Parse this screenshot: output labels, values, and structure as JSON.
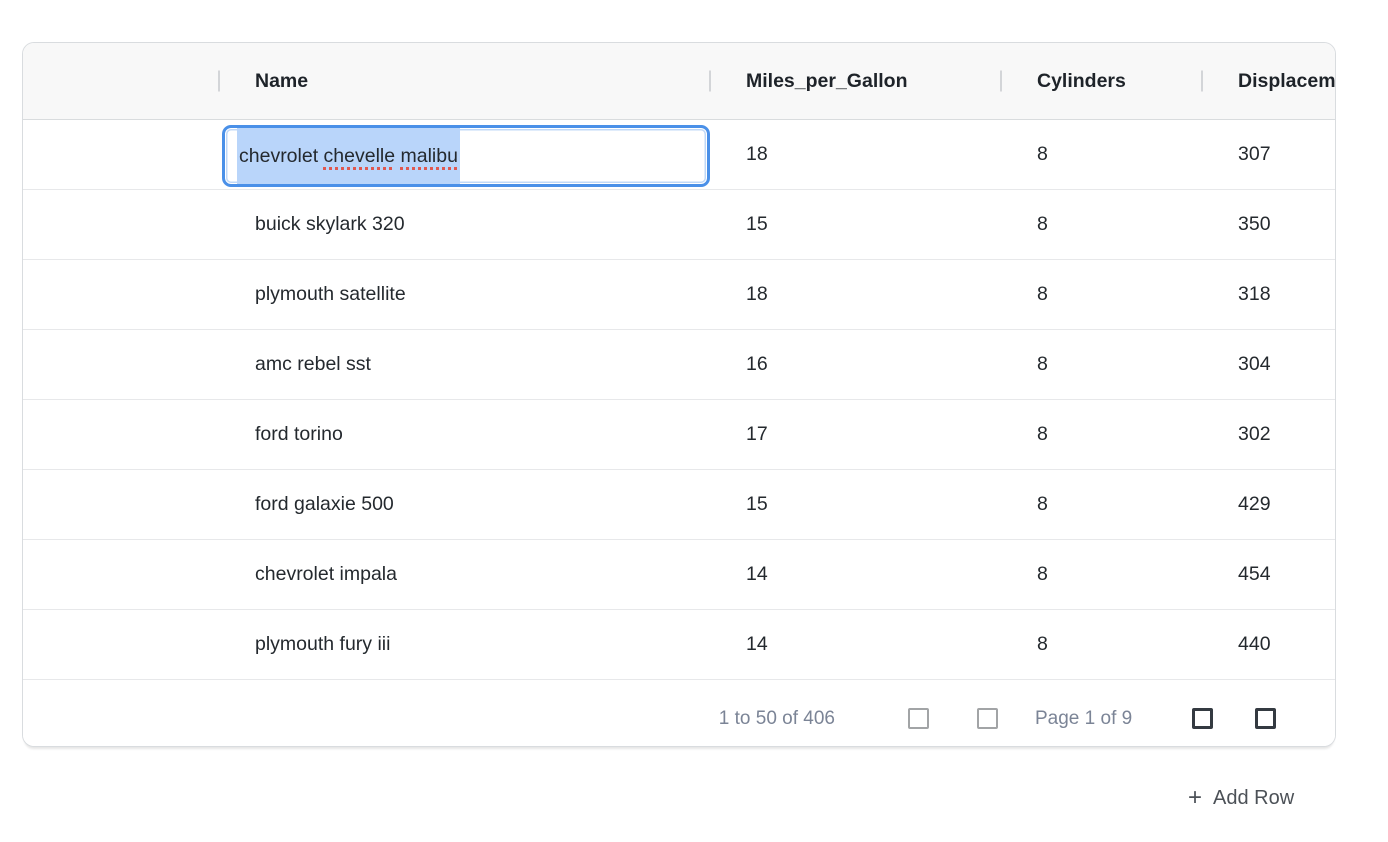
{
  "table": {
    "columns": [
      {
        "key": "drag",
        "label": ""
      },
      {
        "key": "name",
        "label": "Name"
      },
      {
        "key": "mpg",
        "label": "Miles_per_Gallon"
      },
      {
        "key": "cylinders",
        "label": "Cylinders"
      },
      {
        "key": "displacement",
        "label": "Displacement",
        "truncated_display": "Displacer"
      }
    ],
    "rows": [
      {
        "name": "",
        "mpg": 18,
        "cylinders": 8,
        "displacement": 307,
        "editing": true
      },
      {
        "name": "buick skylark 320",
        "mpg": 15,
        "cylinders": 8,
        "displacement": 350
      },
      {
        "name": "plymouth satellite",
        "mpg": 18,
        "cylinders": 8,
        "displacement": 318
      },
      {
        "name": "amc rebel sst",
        "mpg": 16,
        "cylinders": 8,
        "displacement": 304
      },
      {
        "name": "ford torino",
        "mpg": 17,
        "cylinders": 8,
        "displacement": 302
      },
      {
        "name": "ford galaxie 500",
        "mpg": 15,
        "cylinders": 8,
        "displacement": 429
      },
      {
        "name": "chevrolet impala",
        "mpg": 14,
        "cylinders": 8,
        "displacement": 454
      },
      {
        "name": "plymouth fury iii",
        "mpg": 14,
        "cylinders": 8,
        "displacement": 440
      }
    ],
    "editor": {
      "value": "chevrolet chevelle malibu",
      "text_selected": true,
      "segments": [
        {
          "text": "chevrolet ",
          "misspelled": false
        },
        {
          "text": "chevelle",
          "misspelled": true
        },
        {
          "text": " ",
          "misspelled": false
        },
        {
          "text": "malibu",
          "misspelled": true
        }
      ]
    }
  },
  "pagination": {
    "summary": "1 to 50 of 406",
    "page_status": "Page 1 of 9",
    "buttons": [
      {
        "name": "first-page",
        "enabled": false
      },
      {
        "name": "previous-page",
        "enabled": false
      },
      {
        "name": "next-page",
        "enabled": true
      },
      {
        "name": "last-page",
        "enabled": true
      }
    ]
  },
  "actions": {
    "add_row": {
      "icon": "+",
      "label": "Add Row"
    }
  },
  "colors": {
    "accent_blue": "#4a90e8",
    "selection_blue": "#b9d5fa",
    "spellcheck_red": "#e0584f",
    "header_bg": "#f8f8f8",
    "outer_border": "#d9dcdf",
    "row_border": "#e7e8ea",
    "text": "#24292e",
    "muted_text": "#7b8496"
  }
}
